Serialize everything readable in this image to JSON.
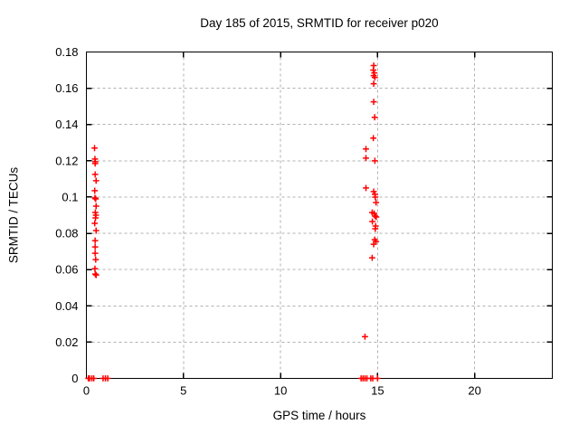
{
  "chart_data": {
    "type": "scatter",
    "title": "Day 185 of 2015, SRMTID for receiver p020",
    "xlabel": "GPS time / hours",
    "ylabel": "SRMTID / TECUs",
    "xlim": [
      0,
      24
    ],
    "ylim": [
      0,
      0.18
    ],
    "x_ticks": [
      0,
      5,
      10,
      15,
      20
    ],
    "x_tick_labels": [
      "0",
      "5",
      "10",
      "15",
      "20"
    ],
    "y_ticks": [
      0,
      0.02,
      0.04,
      0.06,
      0.08,
      0.1,
      0.12,
      0.14,
      0.16,
      0.18
    ],
    "y_tick_labels": [
      "0",
      "0.02",
      "0.04",
      "0.06",
      "0.08",
      "0.1",
      "0.12",
      "0.14",
      "0.16",
      "0.18"
    ],
    "grid": true,
    "legend": "none",
    "marker": "plus",
    "marker_color": "#ff0000",
    "grid_color": "#b0b0b0",
    "border_color": "#000000",
    "series": [
      {
        "name": "SRMTID",
        "points": [
          [
            0.42,
            0.127
          ],
          [
            0.44,
            0.121
          ],
          [
            0.46,
            0.1195
          ],
          [
            0.45,
            0.1185
          ],
          [
            0.45,
            0.1125
          ],
          [
            0.5,
            0.109
          ],
          [
            0.43,
            0.1035
          ],
          [
            0.44,
            0.0995
          ],
          [
            0.48,
            0.099
          ],
          [
            0.5,
            0.095
          ],
          [
            0.46,
            0.0915
          ],
          [
            0.49,
            0.09
          ],
          [
            0.47,
            0.0885
          ],
          [
            0.43,
            0.0855
          ],
          [
            0.5,
            0.0815
          ],
          [
            0.45,
            0.076
          ],
          [
            0.45,
            0.0725
          ],
          [
            0.45,
            0.069
          ],
          [
            0.48,
            0.0655
          ],
          [
            0.44,
            0.0605
          ],
          [
            0.46,
            0.0575
          ],
          [
            0.5,
            0.057
          ],
          [
            14.8,
            0.1725
          ],
          [
            14.78,
            0.17
          ],
          [
            14.83,
            0.1685
          ],
          [
            14.8,
            0.167
          ],
          [
            14.86,
            0.166
          ],
          [
            14.8,
            0.1625
          ],
          [
            14.8,
            0.1525
          ],
          [
            14.85,
            0.144
          ],
          [
            14.78,
            0.1325
          ],
          [
            14.4,
            0.1265
          ],
          [
            14.4,
            0.1215
          ],
          [
            14.86,
            0.12
          ],
          [
            14.4,
            0.105
          ],
          [
            14.8,
            0.103
          ],
          [
            14.86,
            0.1015
          ],
          [
            14.88,
            0.1
          ],
          [
            14.92,
            0.097
          ],
          [
            14.72,
            0.0915
          ],
          [
            14.82,
            0.091
          ],
          [
            14.87,
            0.0895
          ],
          [
            14.93,
            0.089
          ],
          [
            14.73,
            0.0865
          ],
          [
            14.9,
            0.084
          ],
          [
            14.88,
            0.0825
          ],
          [
            14.85,
            0.0765
          ],
          [
            14.92,
            0.0755
          ],
          [
            14.8,
            0.074
          ],
          [
            14.72,
            0.0665
          ],
          [
            14.35,
            0.023
          ],
          [
            0.1,
            0
          ],
          [
            0.16,
            0
          ],
          [
            0.28,
            0
          ],
          [
            0.38,
            0
          ],
          [
            0.86,
            0
          ],
          [
            0.98,
            0
          ],
          [
            1.1,
            0
          ],
          [
            14.15,
            0
          ],
          [
            14.25,
            0
          ],
          [
            14.35,
            0
          ],
          [
            14.45,
            0
          ],
          [
            14.65,
            0
          ],
          [
            14.75,
            0
          ],
          [
            15.0,
            0
          ]
        ]
      }
    ]
  }
}
